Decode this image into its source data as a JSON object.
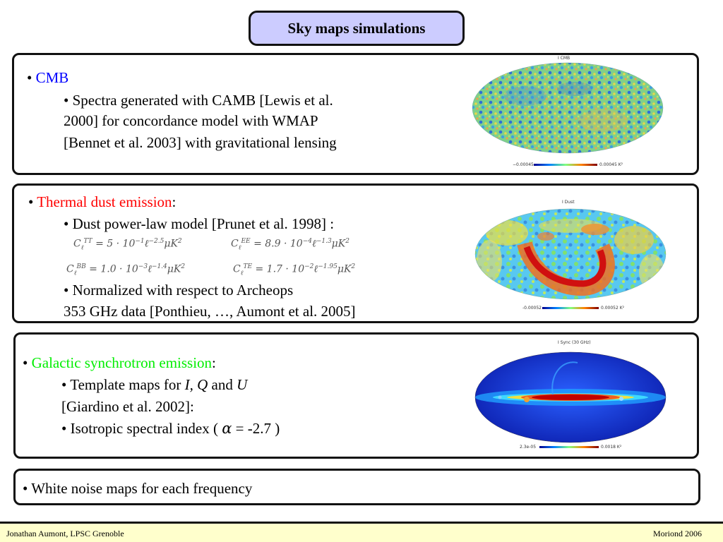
{
  "title": "Sky maps simulations",
  "cmb": {
    "heading": "CMB",
    "lines": [
      "• Spectra generated with CAMB [Lewis et al.",
      "2000] for concordance model with WMAP",
      "[Bennet et al. 2003] with gravitational lensing"
    ],
    "map": {
      "title": "I CMB",
      "min_label": "−0.00045",
      "max_label": "0.00045 K²"
    }
  },
  "dust": {
    "heading": "Thermal dust emission",
    "heading_suffix": ":",
    "model_line": "• Dust power-law model [Prunet et al. 1998] :",
    "equations": {
      "tt": {
        "sup": "TT",
        "rhs": "= 5 · 10",
        "exp1": "−1",
        "ell": "ℓ",
        "exp2": "−2.5",
        "unit": "μK",
        "unit_exp": "2"
      },
      "ee": {
        "sup": "EE",
        "rhs": "= 8.9 · 10",
        "exp1": "−4",
        "ell": "ℓ",
        "exp2": "−1.3",
        "unit": "μK",
        "unit_exp": "2"
      },
      "bb": {
        "sup": "BB",
        "rhs": "= 1.0 · 10",
        "exp1": "−3",
        "ell": "ℓ",
        "exp2": "−1.4",
        "unit": "μK",
        "unit_exp": "2"
      },
      "te": {
        "sup": "TE",
        "rhs": "= 1.7 · 10",
        "exp1": "−2",
        "ell": "ℓ",
        "exp2": "−1.95",
        "unit": "μK",
        "unit_exp": "2"
      }
    },
    "norm_lines": [
      "• Normalized with respect to Archeops",
      "353 GHz data [Ponthieu, …, Aumont et al. 2005]"
    ],
    "map": {
      "title": "I Dust",
      "min_label": "-0.00052",
      "max_label": "0.00052 K²"
    }
  },
  "sync": {
    "heading": "Galactic synchrotron emission",
    "heading_suffix": ":",
    "template_prefix": "• Template maps for ",
    "template_i": "I,",
    "template_q": "Q",
    "template_and": "and",
    "template_u": "U",
    "ref_line": "[Giardino et al. 2002]:",
    "iso_prefix": "• Isotropic spectral index (",
    "alpha": "α",
    "equals": "=",
    "iso_value": "-2.7 )",
    "map": {
      "title": "I Sync (30 GHz)",
      "min_label": "2.3e-05",
      "max_label": "0.0018 K²"
    }
  },
  "noise": {
    "line": "• White noise maps for each frequency"
  },
  "footer": {
    "left": "Jonathan Aumont, LPSC Grenoble",
    "right": "Moriond 2006"
  },
  "colors": {
    "title_bg": "#ccccff",
    "footer_bg": "#ffffcc",
    "cmb": "#0000ff",
    "dust": "#ff0000",
    "sync": "#00ee00"
  }
}
